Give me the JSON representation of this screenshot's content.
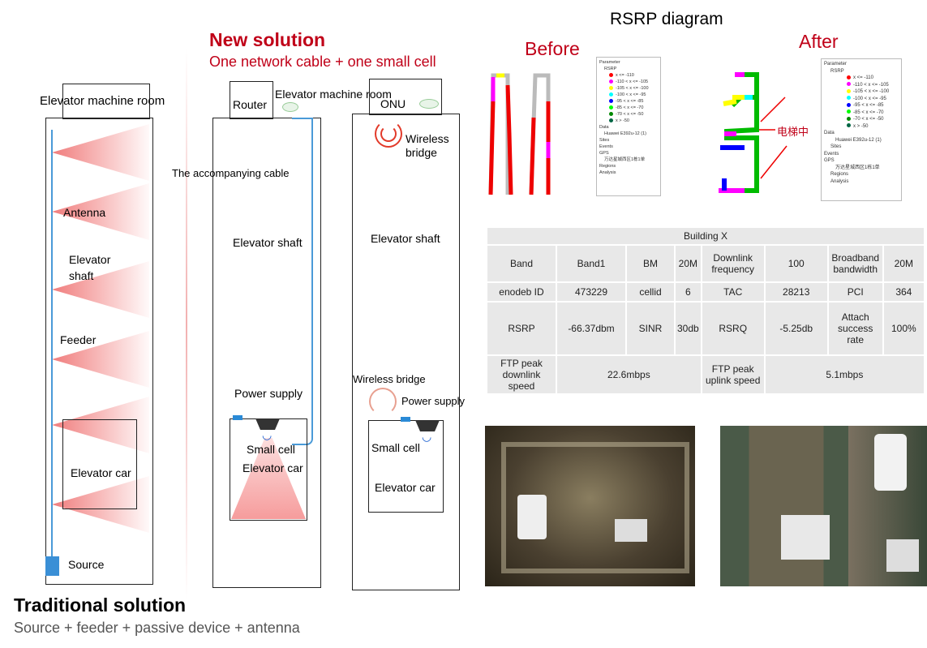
{
  "traditional": {
    "title": "Traditional solution",
    "subtitle": "Source + feeder + passive device + antenna",
    "machine_room": "Elevator machine  room",
    "antenna": "Antenna",
    "shaft": "Elevator shaft",
    "feeder": "Feeder",
    "car": "Elevator car",
    "source": "Source"
  },
  "new_solution": {
    "title": "New solution",
    "subtitle": "One network cable + one small cell"
  },
  "router_col": {
    "router": "Router",
    "machine_room": "Elevator machine room",
    "cable": "The accompanying cable",
    "shaft": "Elevator shaft",
    "power": "Power supply",
    "small_cell": "Small cell",
    "car": "Elevator car"
  },
  "onu_col": {
    "onu": "ONU",
    "wireless_bridge_top": "Wireless bridge",
    "shaft": "Elevator shaft",
    "wireless_bridge": "Wireless bridge",
    "power": "Power supply",
    "small_cell": "Small cell",
    "car": "Elevator car"
  },
  "rsrp": {
    "title": "RSRP diagram",
    "before": "Before",
    "after": "After",
    "after_annotation": "电梯中",
    "legend": {
      "parameter": "Parameter",
      "rsrp": "RSRP",
      "ranges": [
        {
          "label": "x <= -110",
          "color": "#ff0000"
        },
        {
          "label": "-110 < x <= -105",
          "color": "#ff00ff"
        },
        {
          "label": "-105 < x <= -100",
          "color": "#ffff00"
        },
        {
          "label": "-100 < x <= -95",
          "color": "#00ffff"
        },
        {
          "label": "-95 < x <= -85",
          "color": "#0000ff"
        },
        {
          "label": "-85 < x <= -70",
          "color": "#00ff00"
        },
        {
          "label": "-70 < x <= -50",
          "color": "#008000"
        },
        {
          "label": "x > -50",
          "color": "#006400"
        }
      ],
      "data": "Data",
      "device": "Huawei E392u-12 (1)",
      "sites": "Sites",
      "events": "Events",
      "gps": "GPS",
      "gps_item": "万达星城西区1栋1单",
      "regions": "Regions",
      "analysis": "Analysis"
    }
  },
  "table": {
    "title": "Building X",
    "rows": [
      [
        "Band",
        "Band1",
        "BM",
        "20M",
        "Downlink frequency",
        "100",
        "Broadband bandwidth",
        "20M"
      ],
      [
        "enodeb  ID",
        "473229",
        "cellid",
        "6",
        "TAC",
        "28213",
        "PCI",
        "364"
      ],
      [
        "RSRP",
        "-66.37dbm",
        "SINR",
        "30db",
        "RSRQ",
        "-5.25db",
        "Attach success rate",
        "100%"
      ]
    ],
    "last_row": [
      "FTP peak downlink  speed",
      "22.6mbps",
      "FTP peak uplink speed",
      "5.1mbps"
    ]
  }
}
